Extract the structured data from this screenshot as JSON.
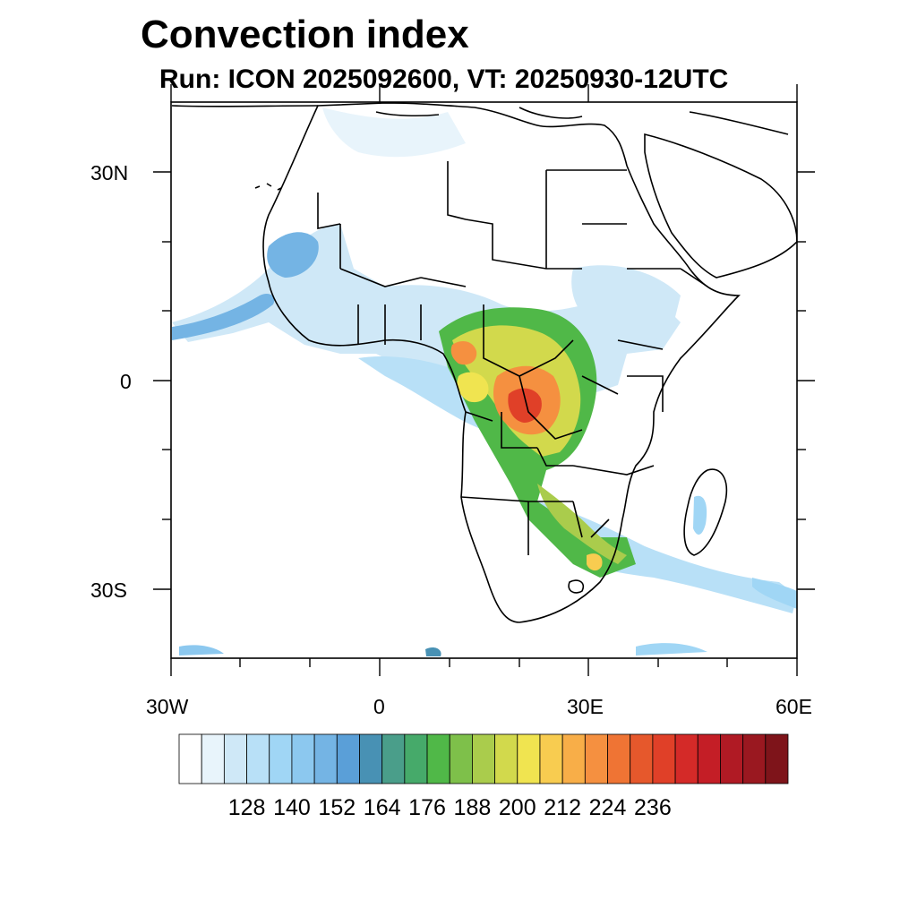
{
  "title": "Convection index",
  "subtitle": "Run: ICON 2025092600,  VT: 20250930-12UTC",
  "map": {
    "region": "Africa",
    "lon_range": [
      -30,
      60
    ],
    "lat_range": [
      -40,
      40
    ],
    "x_ticks": [
      "30W",
      "0",
      "30E",
      "60E"
    ],
    "y_ticks": [
      "30N",
      "0",
      "30S"
    ],
    "land_color": "#ffffff",
    "ocean_color": "#ffffff",
    "border_color": "#000000"
  },
  "colorbar": {
    "labels": [
      "128",
      "140",
      "152",
      "164",
      "176",
      "188",
      "200",
      "212",
      "224",
      "236"
    ],
    "colors": [
      "#ffffff",
      "#e8f4fb",
      "#cfe8f7",
      "#b8e0f7",
      "#a0d6f5",
      "#8cc8ef",
      "#74b4e4",
      "#5a9fd8",
      "#4891b4",
      "#4a9e8a",
      "#46aa6a",
      "#50b848",
      "#7ec04a",
      "#aacc4c",
      "#d2d94c",
      "#f0e450",
      "#f8cc50",
      "#f8ae48",
      "#f59040",
      "#ef7434",
      "#e6582c",
      "#e04028",
      "#d42a28",
      "#c41e26",
      "#b01a24",
      "#9a1820",
      "#7e141a"
    ]
  }
}
